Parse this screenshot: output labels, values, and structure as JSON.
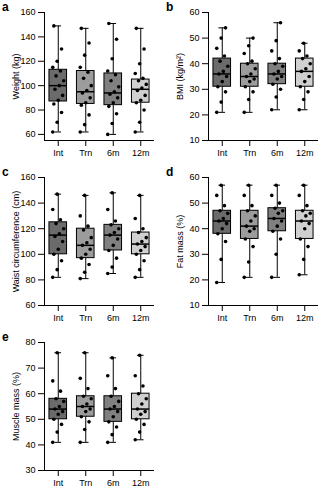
{
  "chart_data": [
    {
      "type": "box",
      "panel": "a",
      "y_label": "Weight (kg)",
      "categories": [
        "Int",
        "Trn",
        "6m",
        "12m"
      ],
      "colors": [
        "#6b6b6b",
        "#9c9c9c",
        "#808080",
        "#d0d0d0"
      ],
      "min": [
        62,
        62,
        60,
        62
      ],
      "q1": [
        87,
        85,
        84,
        86
      ],
      "median": [
        100,
        95,
        94,
        97
      ],
      "q3": [
        113,
        112,
        110,
        105
      ],
      "max": [
        149,
        147,
        151,
        147
      ],
      "points": [
        [
          62,
          70,
          78,
          85,
          88,
          92,
          97,
          100,
          104,
          108,
          112,
          115,
          120,
          130,
          149
        ],
        [
          62,
          68,
          76,
          84,
          86,
          90,
          94,
          96,
          100,
          106,
          111,
          115,
          125,
          135,
          147
        ],
        [
          60,
          69,
          77,
          83,
          86,
          90,
          93,
          95,
          99,
          104,
          109,
          112,
          122,
          138,
          151
        ],
        [
          62,
          70,
          80,
          86,
          88,
          92,
          96,
          98,
          101,
          104,
          106,
          110,
          118,
          130,
          147
        ]
      ],
      "ylim": [
        55,
        160
      ],
      "yticks": [
        60,
        80,
        100,
        120,
        140,
        160
      ]
    },
    {
      "type": "box",
      "panel": "b",
      "y_label": "BMI (kg/m²)",
      "categories": [
        "Int",
        "Trn",
        "6m",
        "12m"
      ],
      "colors": [
        "#6b6b6b",
        "#9c9c9c",
        "#808080",
        "#d0d0d0"
      ],
      "min": [
        21,
        21,
        22,
        22
      ],
      "q1": [
        31,
        31,
        32,
        31
      ],
      "median": [
        36,
        35,
        36,
        37
      ],
      "q3": [
        42,
        40,
        40,
        42
      ],
      "max": [
        54,
        50,
        56,
        48
      ],
      "points": [
        [
          21,
          25,
          29,
          31,
          33,
          35,
          36,
          37,
          39,
          41,
          43,
          46,
          50,
          54
        ],
        [
          21,
          26,
          29,
          31,
          33,
          34,
          35,
          36,
          38,
          40,
          41,
          44,
          47,
          50
        ],
        [
          22,
          27,
          30,
          32,
          34,
          35,
          36,
          37,
          39,
          40,
          42,
          45,
          49,
          56
        ],
        [
          22,
          26,
          29,
          31,
          33,
          35,
          37,
          38,
          40,
          42,
          43,
          45,
          48
        ]
      ],
      "ylim": [
        10,
        60
      ],
      "yticks": [
        10,
        20,
        30,
        40,
        50,
        60
      ]
    },
    {
      "type": "box",
      "panel": "c",
      "y_label": "Waist circumference (cm)",
      "categories": [
        "Int",
        "Trn",
        "6m",
        "12m"
      ],
      "colors": [
        "#6b6b6b",
        "#9c9c9c",
        "#808080",
        "#d0d0d0"
      ],
      "min": [
        82,
        81,
        85,
        82
      ],
      "q1": [
        100,
        97,
        103,
        100
      ],
      "median": [
        115,
        107,
        115,
        108
      ],
      "q3": [
        125,
        120,
        123,
        117
      ],
      "max": [
        147,
        146,
        148,
        146
      ],
      "points": [
        [
          82,
          88,
          95,
          100,
          104,
          110,
          114,
          116,
          120,
          124,
          127,
          135,
          147
        ],
        [
          81,
          86,
          92,
          97,
          100,
          104,
          107,
          109,
          113,
          119,
          122,
          130,
          146
        ],
        [
          85,
          90,
          97,
          103,
          107,
          112,
          115,
          117,
          120,
          123,
          126,
          135,
          148
        ],
        [
          82,
          88,
          95,
          100,
          103,
          106,
          108,
          110,
          113,
          117,
          120,
          128,
          146
        ]
      ],
      "ylim": [
        60,
        160
      ],
      "yticks": [
        60,
        80,
        100,
        120,
        140,
        160
      ]
    },
    {
      "type": "box",
      "panel": "d",
      "y_label": "Fat mass (%)",
      "categories": [
        "Int",
        "Trn",
        "6m",
        "12m"
      ],
      "colors": [
        "#6b6b6b",
        "#9c9c9c",
        "#808080",
        "#d0d0d0"
      ],
      "min": [
        19,
        21,
        21,
        22
      ],
      "q1": [
        38,
        36,
        39,
        36
      ],
      "median": [
        43,
        41,
        44,
        43
      ],
      "q3": [
        47,
        47,
        48,
        47
      ],
      "max": [
        57,
        57,
        57,
        57
      ],
      "points": [
        [
          19,
          28,
          35,
          38,
          40,
          42,
          43,
          44,
          46,
          47,
          49,
          53,
          57
        ],
        [
          21,
          27,
          33,
          36,
          39,
          40,
          41,
          43,
          45,
          47,
          49,
          53,
          57
        ],
        [
          21,
          30,
          36,
          39,
          41,
          43,
          44,
          46,
          47,
          48,
          50,
          53,
          57
        ],
        [
          22,
          28,
          33,
          36,
          40,
          42,
          43,
          45,
          46,
          47,
          49,
          53,
          57
        ]
      ],
      "ylim": [
        10,
        60
      ],
      "yticks": [
        10,
        20,
        30,
        40,
        50,
        60
      ]
    },
    {
      "type": "box",
      "panel": "e",
      "y_label": "Muscle mass (%)",
      "categories": [
        "Int",
        "Trn",
        "6m",
        "12m"
      ],
      "colors": [
        "#6b6b6b",
        "#9c9c9c",
        "#808080",
        "#d0d0d0"
      ],
      "min": [
        41,
        41,
        41,
        42
      ],
      "q1": [
        50,
        51,
        49,
        50
      ],
      "median": [
        54,
        55,
        54,
        54
      ],
      "q3": [
        58,
        59,
        59,
        60
      ],
      "max": [
        76,
        76,
        74,
        75
      ],
      "points": [
        [
          41,
          45,
          48,
          50,
          52,
          53,
          54,
          55,
          57,
          58,
          61,
          65,
          76
        ],
        [
          41,
          46,
          49,
          51,
          53,
          54,
          55,
          56,
          58,
          59,
          62,
          66,
          76
        ],
        [
          41,
          44,
          47,
          49,
          51,
          53,
          54,
          55,
          57,
          59,
          62,
          67,
          74
        ],
        [
          42,
          45,
          48,
          50,
          52,
          53,
          54,
          56,
          58,
          60,
          63,
          67,
          75
        ]
      ],
      "ylim": [
        30,
        80
      ],
      "yticks": [
        30,
        40,
        50,
        60,
        70,
        80
      ]
    }
  ]
}
